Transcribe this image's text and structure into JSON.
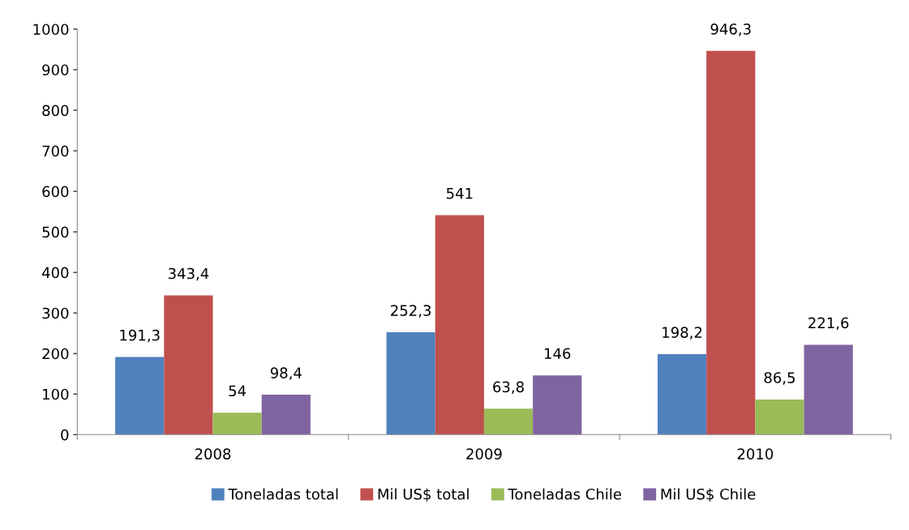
{
  "chart_data": {
    "type": "bar",
    "categories": [
      "2008",
      "2009",
      "2010"
    ],
    "series": [
      {
        "name": "Toneladas total",
        "color": "#4f81bd",
        "values": [
          191.3,
          252.3,
          198.2
        ],
        "value_labels": [
          "191,3",
          "252,3",
          "198,2"
        ]
      },
      {
        "name": "Mil US$ total",
        "color": "#c0504d",
        "values": [
          343.4,
          541,
          946.3
        ],
        "value_labels": [
          "343,4",
          "541",
          "946,3"
        ]
      },
      {
        "name": "Toneladas Chile",
        "color": "#9bbb59",
        "values": [
          54,
          63.8,
          86.5
        ],
        "value_labels": [
          "54",
          "63,8",
          "86,5"
        ]
      },
      {
        "name": "Mil US$ Chile",
        "color": "#8064a2",
        "values": [
          98.4,
          146,
          221.6
        ],
        "value_labels": [
          "98,4",
          "146",
          "221,6"
        ]
      }
    ],
    "ylim": [
      0,
      1000
    ],
    "yticks": [
      0,
      100,
      200,
      300,
      400,
      500,
      600,
      700,
      800,
      900,
      1000
    ],
    "grid": false,
    "legend": "bottom"
  }
}
